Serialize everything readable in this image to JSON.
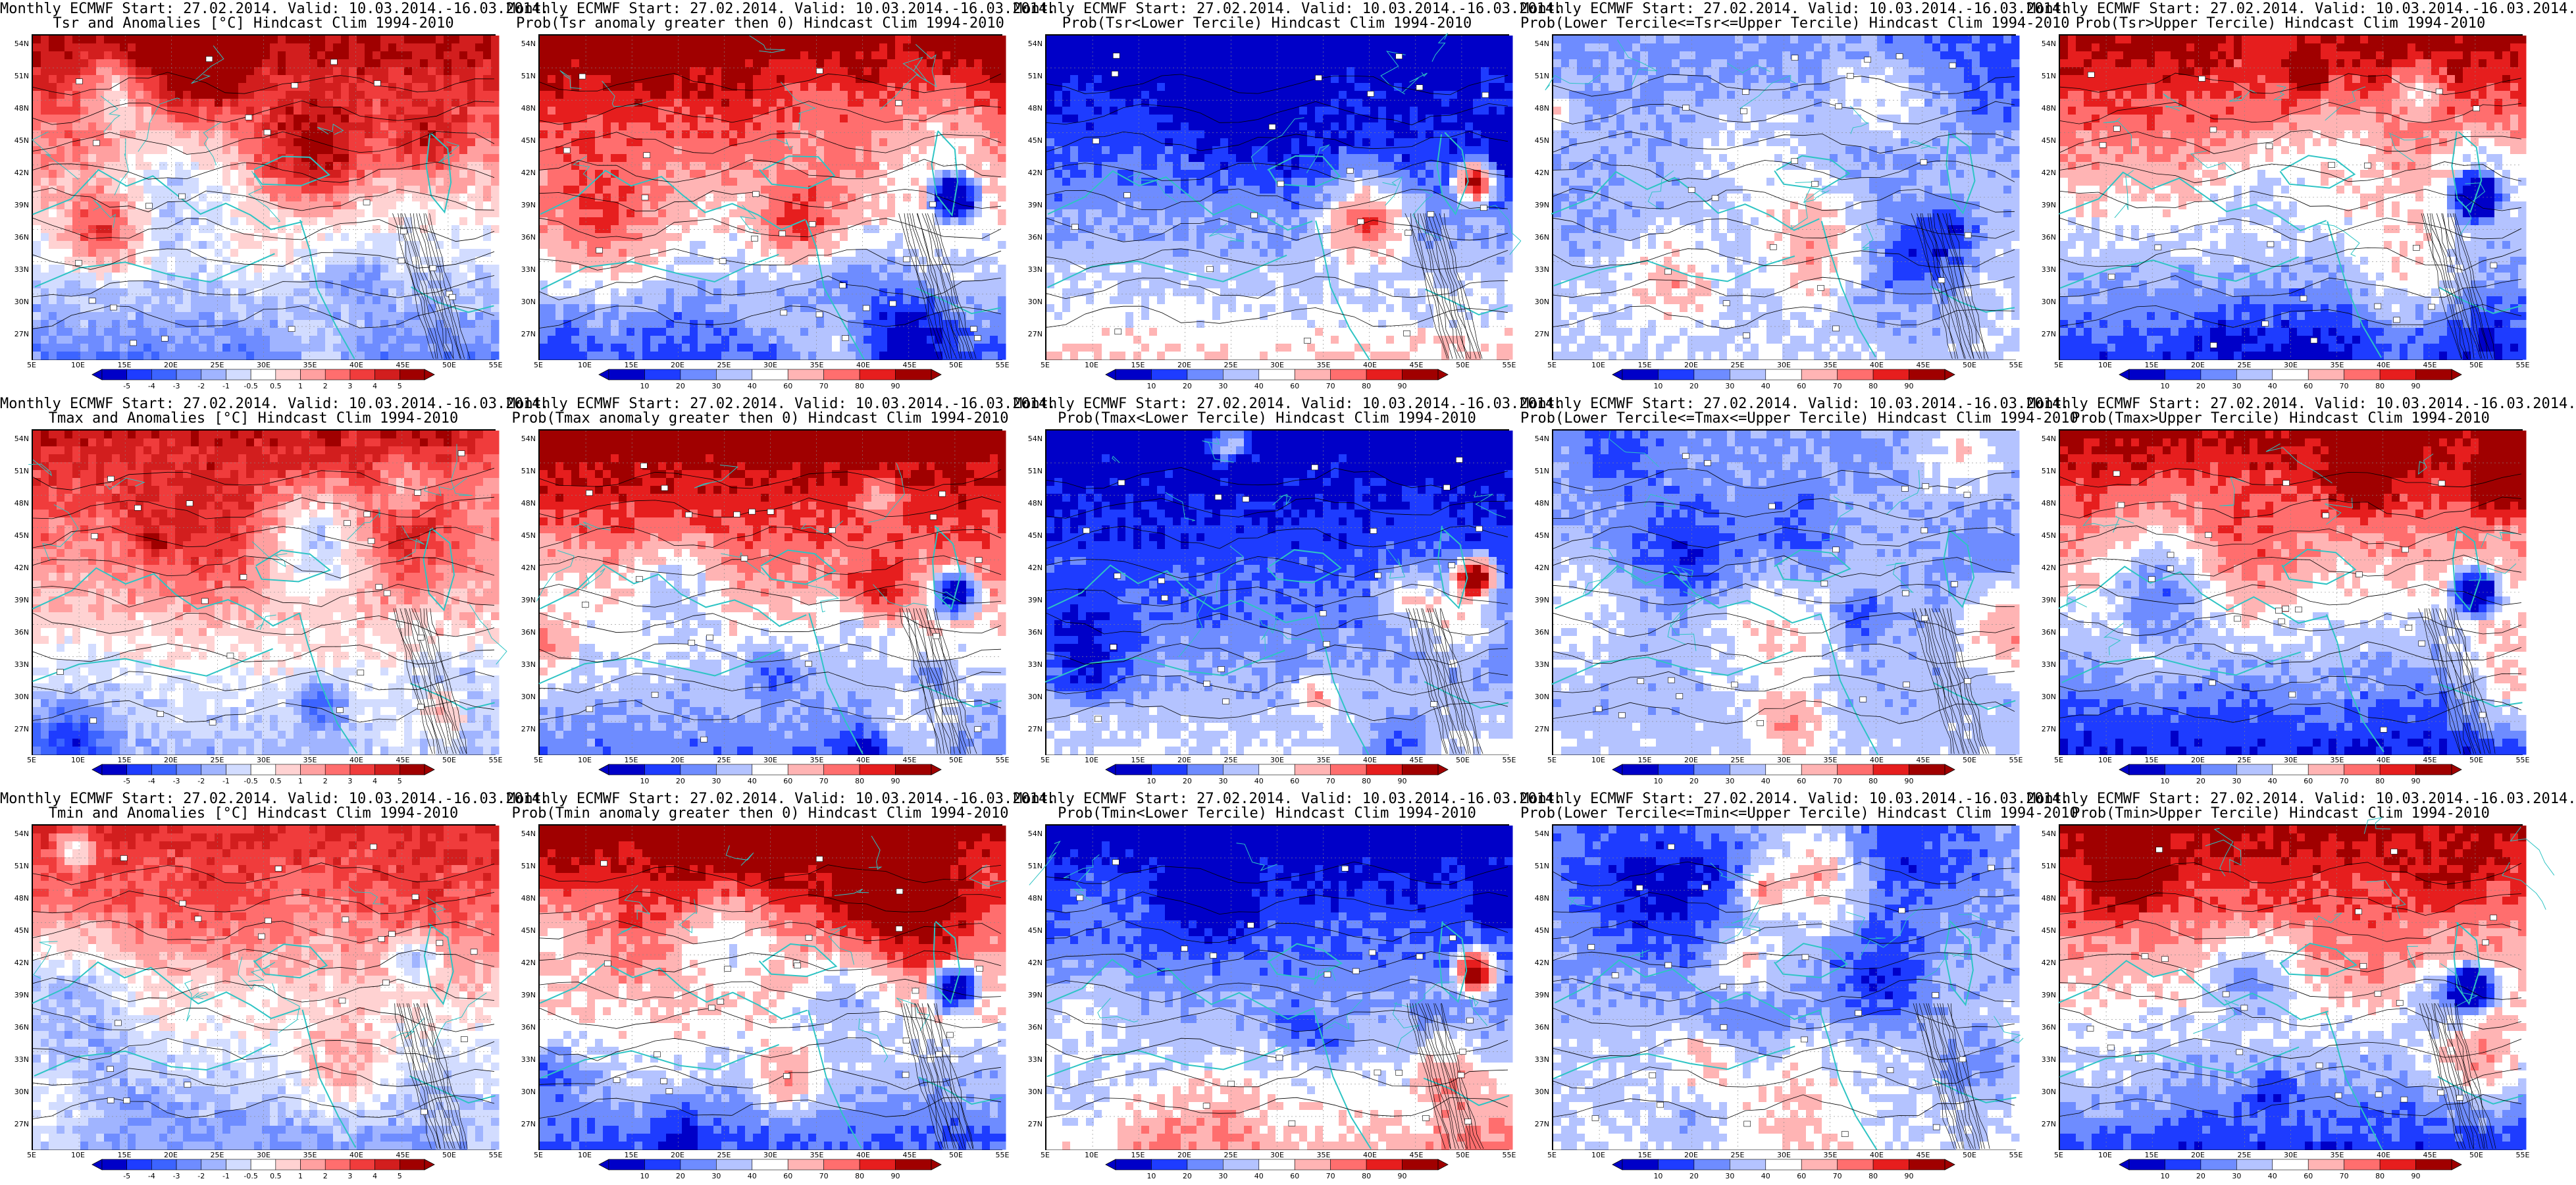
{
  "header": {
    "line1": "Monthly ECMWF Start: 27.02.2014. Valid: 10.03.2014.-16.03.2014."
  },
  "lat_labels": [
    "54N",
    "51N",
    "48N",
    "45N",
    "42N",
    "39N",
    "36N",
    "33N",
    "30N",
    "27N"
  ],
  "lon_labels": [
    "5E",
    "10E",
    "15E",
    "20E",
    "25E",
    "30E",
    "35E",
    "40E",
    "45E",
    "50E",
    "55E"
  ],
  "colorbars": {
    "anomaly": {
      "ticks": [
        "-5",
        "-4",
        "-3",
        "-2",
        "-1",
        "-0.5",
        "0.5",
        "1",
        "2",
        "3",
        "4",
        "5"
      ],
      "colors": [
        "#0000c8",
        "#1e3cff",
        "#3c64ff",
        "#6e8cff",
        "#a0b4ff",
        "#d2dcff",
        "#ffffff",
        "#ffd2d2",
        "#ffa0a0",
        "#ff6e6e",
        "#f03c3c",
        "#d21e1e",
        "#a00000"
      ]
    },
    "probability": {
      "ticks": [
        "10",
        "20",
        "30",
        "40",
        "60",
        "70",
        "80",
        "90"
      ],
      "colors": [
        "#0000c8",
        "#1e3cff",
        "#6e8cff",
        "#b4c3ff",
        "#ffffff",
        "#ffb4b4",
        "#ff6e6e",
        "#e61e1e",
        "#a00000"
      ]
    }
  },
  "colors": {
    "coast": "#2ec4c4",
    "contour": "#000000"
  },
  "panels": [
    {
      "title2": "Tsr and Anomalies [°C] Hindcast Clim 1994-2010",
      "kind": "anomaly",
      "north": 0.95,
      "south": 0.25,
      "trend": "warm",
      "icon": "anomaly-map-icon"
    },
    {
      "title2": "Prob(Tsr anomaly greater then 0) Hindcast Clim 1994-2010",
      "kind": "probability",
      "north": 1.0,
      "south": 0.2,
      "trend": "warm",
      "icon": "probability-map-icon"
    },
    {
      "title2": "Prob(Tsr<Lower Tercile) Hindcast Clim 1994-2010",
      "kind": "probability",
      "north": 0.0,
      "south": 0.55,
      "trend": "cold",
      "icon": "probability-map-icon"
    },
    {
      "title2": "Prob(Lower Tercile<=Tsr<=Upper Tercile) Hindcast Clim 1994-2010",
      "kind": "probability",
      "north": 0.3,
      "south": 0.45,
      "trend": "neutral",
      "icon": "probability-map-icon"
    },
    {
      "title2": "Prob(Tsr>Upper Tercile) Hindcast Clim 1994-2010",
      "kind": "probability",
      "north": 0.95,
      "south": 0.15,
      "trend": "warm",
      "icon": "probability-map-icon"
    },
    {
      "title2": "Tmax and Anomalies [°C] Hindcast Clim 1994-2010",
      "kind": "anomaly",
      "north": 0.9,
      "south": 0.35,
      "trend": "warm",
      "icon": "anomaly-map-icon"
    },
    {
      "title2": "Prob(Tmax anomaly greater then 0) Hindcast Clim 1994-2010",
      "kind": "probability",
      "north": 1.0,
      "south": 0.25,
      "trend": "warm",
      "icon": "probability-map-icon"
    },
    {
      "title2": "Prob(Tmax<Lower Tercile) Hindcast Clim 1994-2010",
      "kind": "probability",
      "north": 0.0,
      "south": 0.45,
      "trend": "cold",
      "icon": "probability-map-icon"
    },
    {
      "title2": "Prob(Lower Tercile<=Tmax<=Upper Tercile) Hindcast Clim 1994-2010",
      "kind": "probability",
      "north": 0.3,
      "south": 0.4,
      "trend": "neutral",
      "icon": "probability-map-icon"
    },
    {
      "title2": "Prob(Tmax>Upper Tercile) Hindcast Clim 1994-2010",
      "kind": "probability",
      "north": 0.95,
      "south": 0.1,
      "trend": "warm",
      "icon": "probability-map-icon"
    },
    {
      "title2": "Tmin and Anomalies [°C] Hindcast Clim 1994-2010",
      "kind": "anomaly",
      "north": 0.85,
      "south": 0.3,
      "trend": "warm",
      "icon": "anomaly-map-icon"
    },
    {
      "title2": "Prob(Tmin anomaly greater then 0) Hindcast Clim 1994-2010",
      "kind": "probability",
      "north": 1.0,
      "south": 0.2,
      "trend": "warm",
      "icon": "probability-map-icon"
    },
    {
      "title2": "Prob(Tmin<Lower Tercile) Hindcast Clim 1994-2010",
      "kind": "probability",
      "north": 0.0,
      "south": 0.6,
      "trend": "cold",
      "icon": "probability-map-icon"
    },
    {
      "title2": "Prob(Lower Tercile<=Tmin<=Upper Tercile) Hindcast Clim 1994-2010",
      "kind": "probability",
      "north": 0.3,
      "south": 0.45,
      "trend": "neutral",
      "icon": "probability-map-icon"
    },
    {
      "title2": "Prob(Tmin>Upper Tercile) Hindcast Clim 1994-2010",
      "kind": "probability",
      "north": 0.95,
      "south": 0.15,
      "trend": "warm",
      "icon": "probability-map-icon"
    }
  ]
}
